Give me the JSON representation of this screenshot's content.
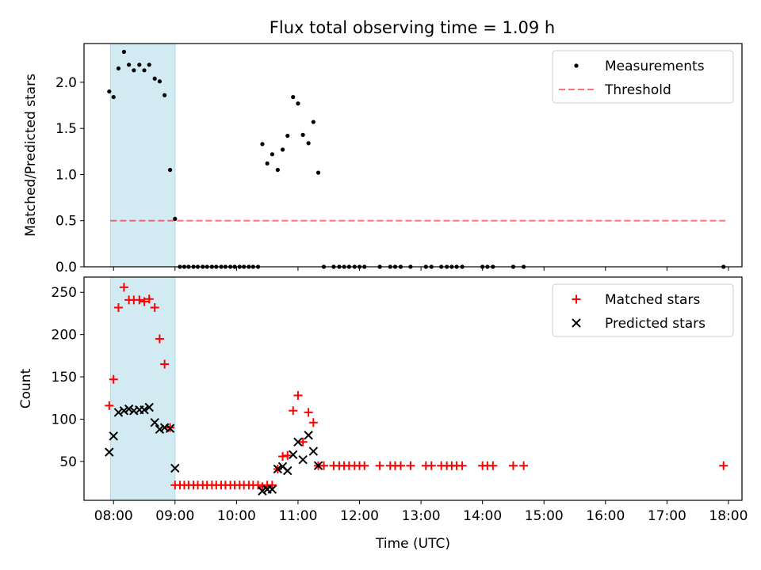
{
  "title": "Flux total observing time = 1.09 h",
  "colors": {
    "shade": "#add8e6",
    "threshold": "#ff0000",
    "matched": "#ff0000",
    "predicted": "#000000",
    "measurements": "#000000"
  },
  "chart_data": [
    {
      "type": "scatter",
      "panel": "top",
      "ylabel": "Matched/Predicted stars",
      "xlabel": "",
      "xlim": [
        7.52,
        18.22
      ],
      "ylim": [
        0,
        2.42
      ],
      "yticks": [
        0.0,
        0.5,
        1.0,
        1.5,
        2.0
      ],
      "ytick_labels": [
        "0.0",
        "0.5",
        "1.0",
        "1.5",
        "2.0"
      ],
      "shaded_interval": [
        "07:57",
        "09:00"
      ],
      "legend_position": "top-right",
      "legend": [
        {
          "label": "Measurements",
          "marker": "dot"
        },
        {
          "label": "Threshold",
          "marker": "dashed-line"
        }
      ],
      "threshold": {
        "name": "Threshold",
        "value": 0.5,
        "x_range": [
          7.95,
          17.95
        ]
      },
      "series": [
        {
          "name": "Measurements",
          "x": [
            7.93,
            8.0,
            8.08,
            8.17,
            8.25,
            8.33,
            8.42,
            8.5,
            8.58,
            8.67,
            8.75,
            8.83,
            8.92,
            9.0,
            9.08,
            9.15,
            9.22,
            9.3,
            9.37,
            9.45,
            9.52,
            9.6,
            9.67,
            9.75,
            9.82,
            9.9,
            9.97,
            10.05,
            10.12,
            10.2,
            10.27,
            10.35,
            10.42,
            10.5,
            10.58,
            10.67,
            10.75,
            10.83,
            10.92,
            11.0,
            11.08,
            11.17,
            11.25,
            11.33,
            11.42,
            11.58,
            11.67,
            11.75,
            11.83,
            11.92,
            12.0,
            12.08,
            12.33,
            12.5,
            12.58,
            12.67,
            12.83,
            13.08,
            13.17,
            13.33,
            13.42,
            13.5,
            13.58,
            13.67,
            14.0,
            14.08,
            14.17,
            14.5,
            14.67,
            17.92
          ],
          "y": [
            1.9,
            1.84,
            2.15,
            2.33,
            2.19,
            2.13,
            2.19,
            2.13,
            2.19,
            2.04,
            2.01,
            1.86,
            1.05,
            0.52,
            0,
            0,
            0,
            0,
            0,
            0,
            0,
            0,
            0,
            0,
            0,
            0,
            0,
            0,
            0,
            0,
            0,
            0,
            1.33,
            1.12,
            1.22,
            1.05,
            1.27,
            1.42,
            1.84,
            1.77,
            1.43,
            1.34,
            1.57,
            1.02,
            0,
            0,
            0,
            0,
            0,
            0,
            0,
            0,
            0,
            0,
            0,
            0,
            0,
            0,
            0,
            0,
            0,
            0,
            0,
            0,
            0,
            0,
            0,
            0,
            0,
            0
          ]
        }
      ]
    },
    {
      "type": "scatter",
      "panel": "bottom",
      "ylabel": "Count",
      "xlabel": "Time (UTC)",
      "xlim": [
        7.52,
        18.22
      ],
      "ylim": [
        4,
        268
      ],
      "yticks": [
        50,
        100,
        150,
        200,
        250
      ],
      "ytick_labels": [
        "50",
        "100",
        "150",
        "200",
        "250"
      ],
      "xticks": [
        8,
        9,
        10,
        11,
        12,
        13,
        14,
        15,
        16,
        17,
        18
      ],
      "xtick_labels": [
        "08:00",
        "09:00",
        "10:00",
        "11:00",
        "12:00",
        "13:00",
        "14:00",
        "15:00",
        "16:00",
        "17:00",
        "18:00"
      ],
      "shaded_interval": [
        "07:57",
        "09:00"
      ],
      "legend_position": "top-right",
      "legend": [
        {
          "label": "Matched stars",
          "marker": "plus"
        },
        {
          "label": "Predicted stars",
          "marker": "x"
        }
      ],
      "series": [
        {
          "name": "Matched stars",
          "x": [
            7.93,
            8.0,
            8.08,
            8.17,
            8.25,
            8.33,
            8.42,
            8.5,
            8.58,
            8.67,
            8.75,
            8.83,
            8.92,
            9.0,
            9.08,
            9.15,
            9.22,
            9.3,
            9.37,
            9.45,
            9.52,
            9.6,
            9.67,
            9.75,
            9.82,
            9.9,
            9.97,
            10.05,
            10.12,
            10.2,
            10.27,
            10.35,
            10.42,
            10.5,
            10.58,
            10.67,
            10.75,
            10.83,
            10.92,
            11.0,
            11.08,
            11.17,
            11.25,
            11.33,
            11.42,
            11.58,
            11.67,
            11.75,
            11.83,
            11.92,
            12.0,
            12.08,
            12.33,
            12.5,
            12.58,
            12.67,
            12.83,
            13.08,
            13.17,
            13.33,
            13.42,
            13.5,
            13.58,
            13.67,
            14.0,
            14.08,
            14.17,
            14.5,
            14.67,
            17.92
          ],
          "y": [
            116,
            147,
            232,
            256,
            241,
            241,
            241,
            239,
            242,
            232,
            195,
            165,
            90,
            22,
            22,
            22,
            22,
            22,
            22,
            22,
            22,
            22,
            22,
            22,
            22,
            22,
            22,
            22,
            22,
            22,
            22,
            22,
            20,
            22,
            22,
            41,
            56,
            57,
            110,
            128,
            73,
            108,
            96,
            45,
            45,
            45,
            45,
            45,
            45,
            45,
            45,
            45,
            45,
            45,
            45,
            45,
            45,
            45,
            45,
            45,
            45,
            45,
            45,
            45,
            45,
            45,
            45,
            45,
            45,
            45
          ]
        },
        {
          "name": "Predicted stars",
          "x": [
            7.93,
            8.0,
            8.08,
            8.17,
            8.25,
            8.33,
            8.42,
            8.5,
            8.58,
            8.67,
            8.75,
            8.83,
            8.92,
            9.0,
            10.42,
            10.5,
            10.58,
            10.67,
            10.75,
            10.83,
            10.92,
            11.0,
            11.08,
            11.17,
            11.25,
            11.33
          ],
          "y": [
            61,
            80,
            108,
            110,
            112,
            110,
            111,
            111,
            114,
            96,
            88,
            90,
            89,
            42,
            15,
            17,
            17,
            41,
            44,
            39,
            58,
            73,
            52,
            81,
            62,
            45
          ]
        }
      ]
    }
  ]
}
